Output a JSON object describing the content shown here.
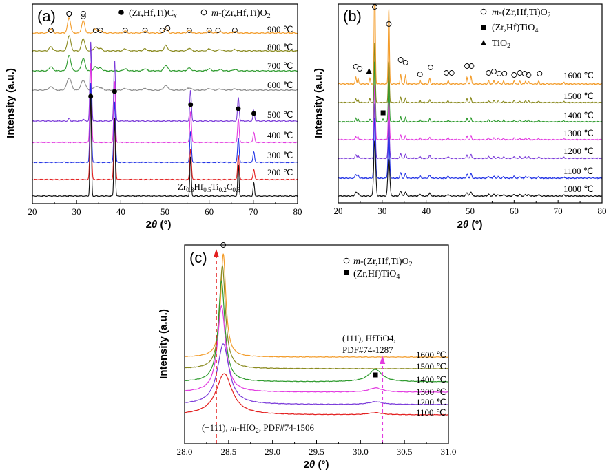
{
  "colors": {
    "900": "#f39c2a",
    "800": "#8a8a1f",
    "700": "#2e9b2e",
    "600": "#8c8c8c",
    "500": "#7a3ad9",
    "400": "#e23be0",
    "300": "#2233e6",
    "200": "#e31f1f",
    "100": "#111111",
    "1600": "#f39c2a",
    "1500": "#8a8a1f",
    "1400": "#2e9b2e",
    "1300": "#e23be0",
    "1200": "#7a3ad9",
    "1100": "#2233e6",
    "1000": "#111111",
    "1100c": "#e31f1f",
    "red_arrow": "#e31f1f",
    "magenta_arrow": "#e23be0"
  },
  "chart_data": [
    {
      "type": "line",
      "panel_label": "(a)",
      "xlabel": "2θ (°)",
      "ylabel": "Intensity (a.u.)",
      "xlim": [
        20,
        80
      ],
      "xticks": [
        "20",
        "30",
        "40",
        "50",
        "60",
        "70",
        "80"
      ],
      "legend": [
        {
          "symbol": "filled-circle",
          "text": "(Zr,Hf,Ti)Cx"
        },
        {
          "symbol": "open-circle",
          "text": "m-(Zr,Hf,Ti)O2"
        }
      ],
      "series_labels": [
        "900 ℃",
        "800 ℃",
        "700 ℃",
        "600 ℃",
        "500 ℃",
        "400 ℃",
        "300 ℃",
        "200 ℃"
      ],
      "bottom_label": "Zr0.3Hf0.5Ti0.2C0.8",
      "oxide_peaks": [
        24.2,
        28.3,
        31.5,
        34.3,
        35.4,
        41.0,
        45.5,
        50.2,
        55.5,
        60.0,
        62.5,
        65.8
      ],
      "carbide_peaks": [
        33.2,
        38.6,
        55.8,
        66.6,
        70.1
      ]
    },
    {
      "type": "line",
      "panel_label": "(b)",
      "xlabel": "2θ (°)",
      "ylabel": "Intensity (a.u.)",
      "xlim": [
        20,
        80
      ],
      "xticks": [
        "20",
        "30",
        "40",
        "50",
        "60",
        "70",
        "80"
      ],
      "legend": [
        {
          "symbol": "open-circle",
          "text": "m-(Zr,Hf,Ti)O2"
        },
        {
          "symbol": "filled-square",
          "text": "(Zr,Hf)TiO4"
        },
        {
          "symbol": "filled-triangle",
          "text": "TiO2"
        }
      ],
      "series_labels": [
        "1600 ℃",
        "1500 ℃",
        "1400 ℃",
        "1300 ℃",
        "1200 ℃",
        "1100 ℃",
        "1000 ℃"
      ],
      "oxide_peaks": [
        24.0,
        24.5,
        28.3,
        31.5,
        34.2,
        35.3,
        38.6,
        40.8,
        45.0,
        49.3,
        50.2,
        54.2,
        55.4,
        56.4,
        57.6,
        60.0,
        61.3,
        62.6,
        63.3,
        65.6,
        71.3
      ],
      "titanate_peak": 30.2,
      "tio2_peak": 27.2
    },
    {
      "type": "line",
      "panel_label": "(c)",
      "xlabel": "2θ (°)",
      "ylabel": "Intensity (a.u.)",
      "xlim": [
        28.0,
        31.0
      ],
      "xticks": [
        "28.0",
        "28.5",
        "29.0",
        "29.5",
        "30.0",
        "30.5",
        "31.0"
      ],
      "legend": [
        {
          "symbol": "open-circle",
          "text": "m-(Zr,Hf,Ti)O2"
        },
        {
          "symbol": "filled-square",
          "text": "(Zr,Hf)TiO4"
        }
      ],
      "series_labels": [
        "1600 ℃",
        "1500 ℃",
        "1400 ℃",
        "1300 ℃",
        "1200 ℃",
        "1100 ℃"
      ],
      "annotations": {
        "ref1": "(−111), m-HfO2, PDF#74-1506",
        "ref1_x": 28.36,
        "ref2_line1": "(111), HfTiO4,",
        "ref2_line2": "PDF#74-1287",
        "ref2_x": 30.25
      },
      "main_peak": 28.44,
      "titanate_peak": 30.17
    }
  ]
}
